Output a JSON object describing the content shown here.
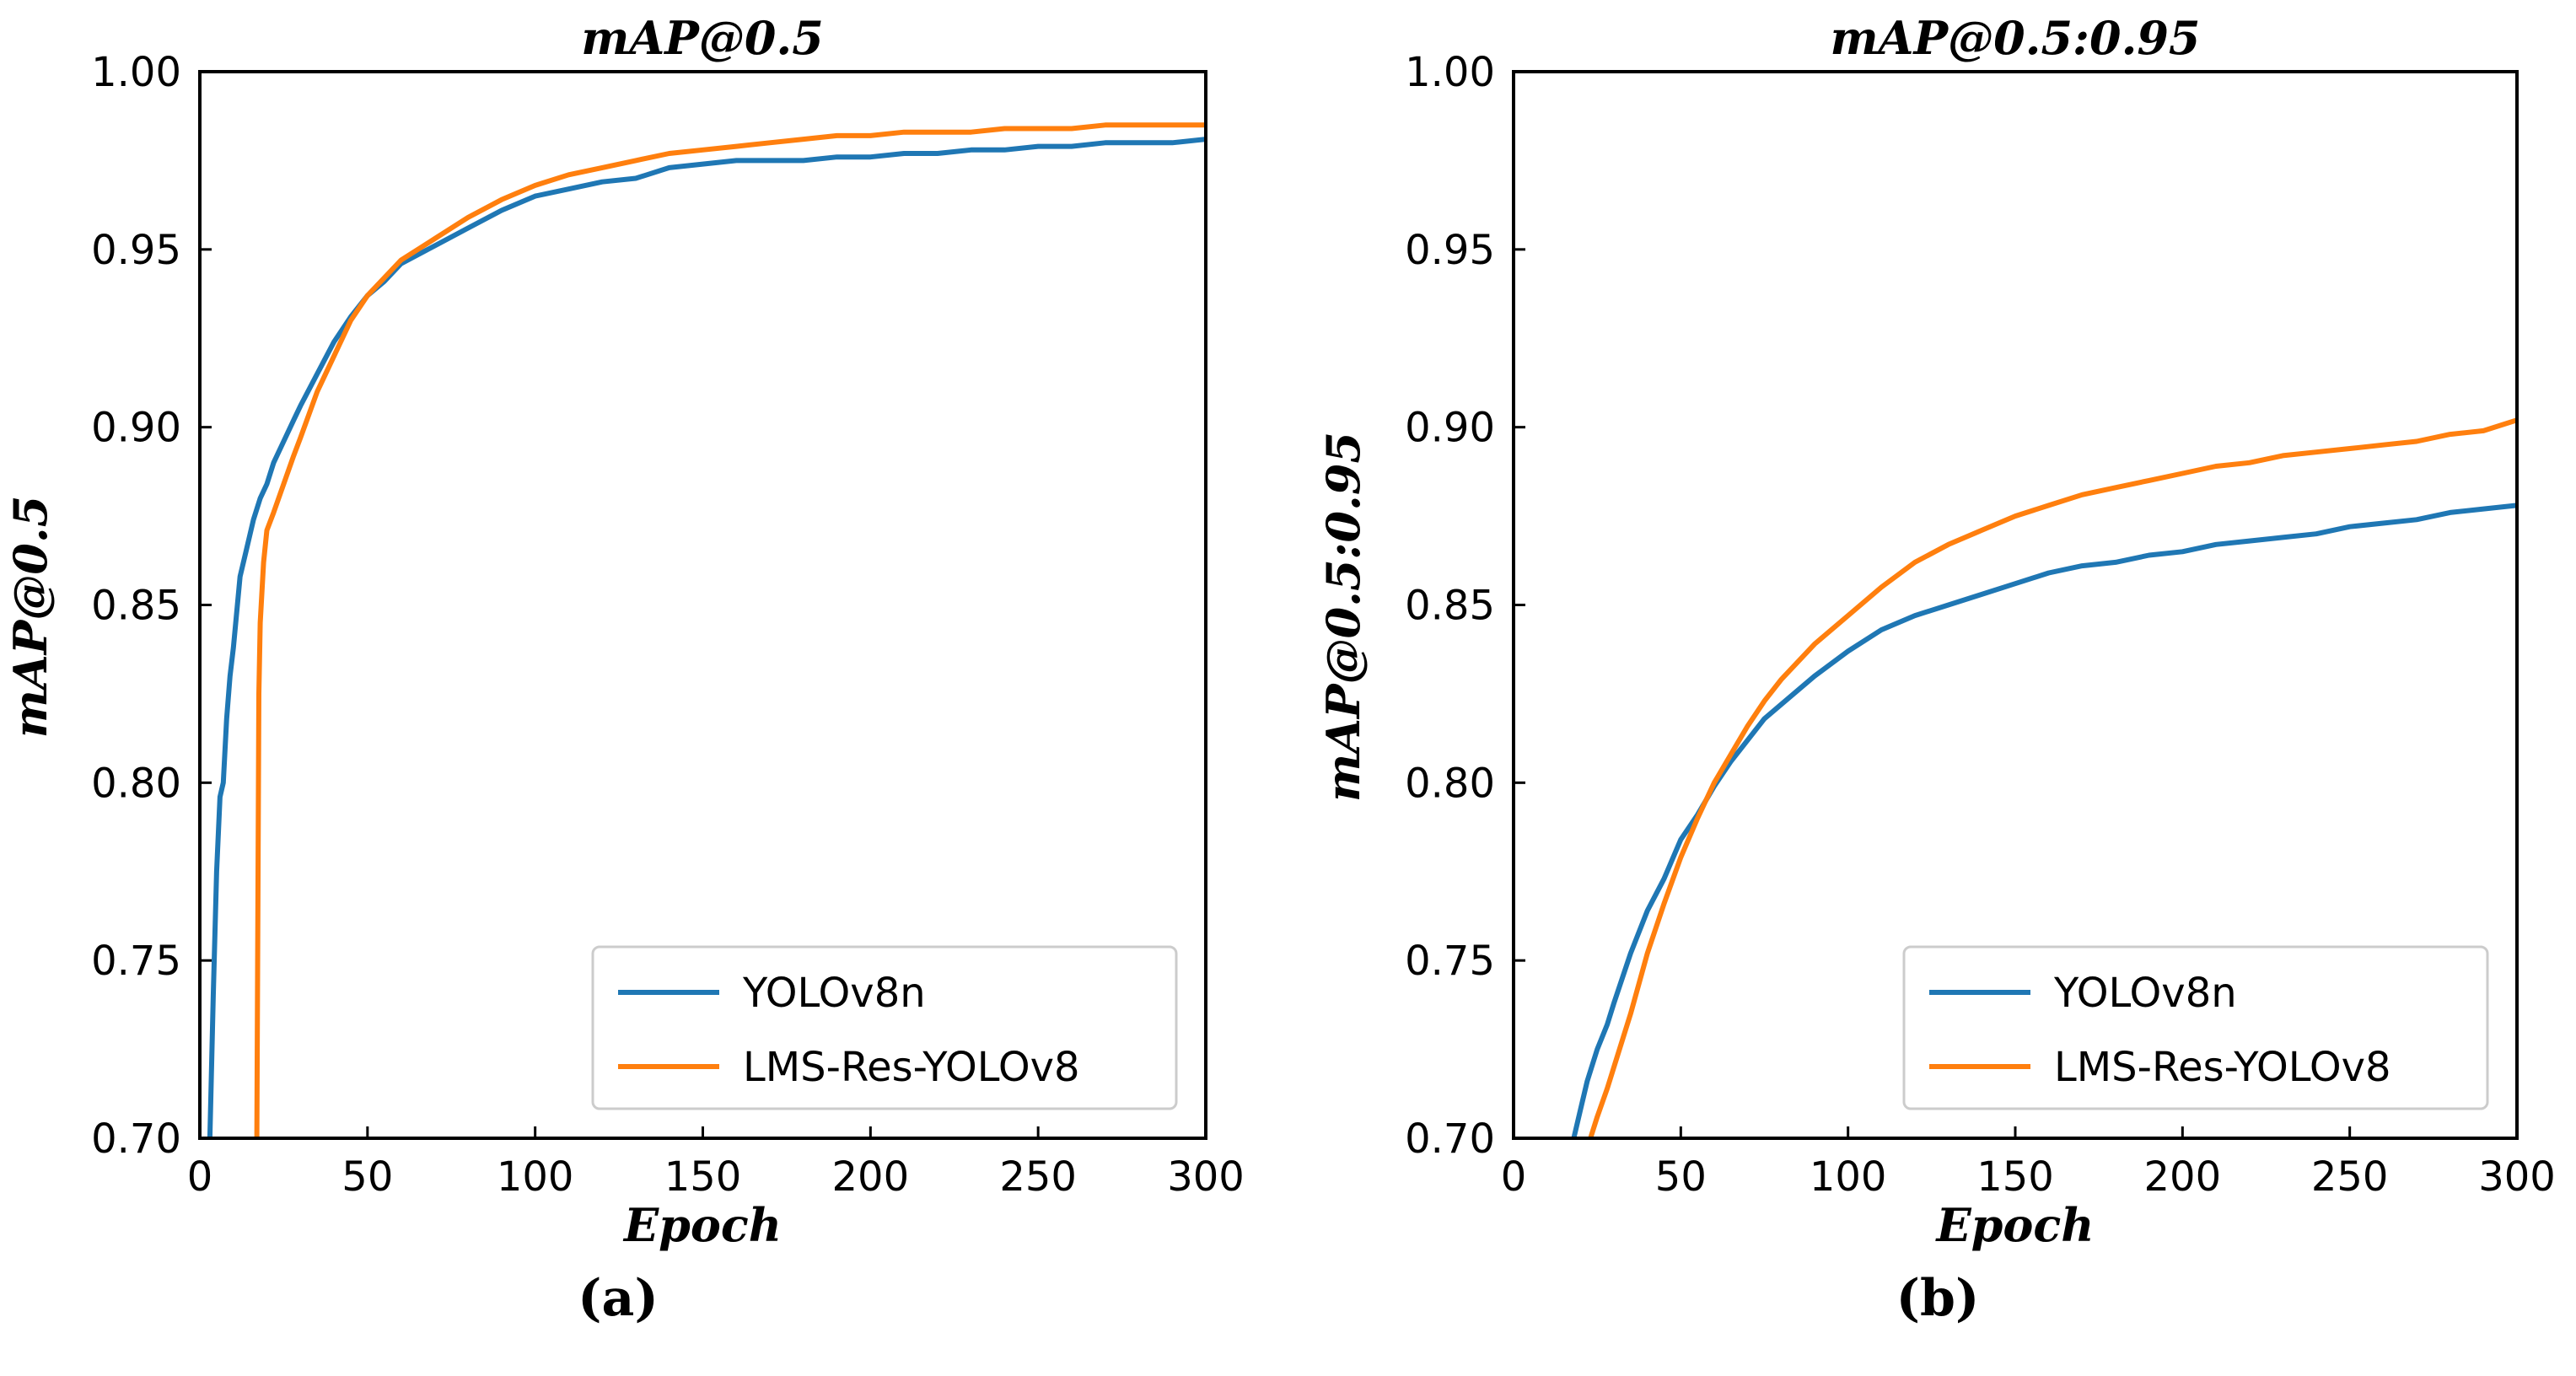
{
  "figure": {
    "captions": [
      "(a)",
      "(b)"
    ]
  },
  "chart_data": [
    {
      "type": "line",
      "title": "mAP@0.5",
      "xlabel": "Epoch",
      "ylabel": "mAP@0.5",
      "xlim": [
        0,
        300
      ],
      "ylim": [
        0.7,
        1.0
      ],
      "xticks": [
        0,
        50,
        100,
        150,
        200,
        250,
        300
      ],
      "yticks": [
        0.7,
        0.75,
        0.8,
        0.85,
        0.9,
        0.95,
        1.0
      ],
      "ytick_labels": [
        "0.70",
        "0.75",
        "0.80",
        "0.85",
        "0.90",
        "0.95",
        "1.00"
      ],
      "legend_position": "lower-right",
      "series": [
        {
          "name": "YOLOv8n",
          "color": "#1f77b4",
          "x": [
            3,
            4,
            5,
            6,
            7,
            8,
            9,
            10,
            12,
            14,
            16,
            18,
            20,
            22,
            25,
            28,
            30,
            35,
            40,
            45,
            50,
            55,
            60,
            70,
            80,
            90,
            100,
            110,
            120,
            130,
            140,
            150,
            160,
            170,
            180,
            190,
            200,
            210,
            220,
            230,
            240,
            250,
            260,
            270,
            280,
            290,
            300
          ],
          "y": [
            0.7,
            0.74,
            0.775,
            0.796,
            0.8,
            0.818,
            0.83,
            0.838,
            0.858,
            0.866,
            0.874,
            0.88,
            0.884,
            0.89,
            0.896,
            0.902,
            0.906,
            0.915,
            0.924,
            0.931,
            0.937,
            0.941,
            0.946,
            0.951,
            0.956,
            0.961,
            0.965,
            0.967,
            0.969,
            0.97,
            0.973,
            0.974,
            0.975,
            0.975,
            0.975,
            0.976,
            0.976,
            0.977,
            0.977,
            0.978,
            0.978,
            0.979,
            0.979,
            0.98,
            0.98,
            0.98,
            0.981
          ]
        },
        {
          "name": "LMS-Res-YOLOv8",
          "color": "#ff7f0e",
          "x": [
            17,
            17.6,
            18,
            19,
            20,
            22,
            25,
            28,
            30,
            35,
            40,
            45,
            50,
            55,
            60,
            70,
            80,
            90,
            100,
            110,
            120,
            130,
            140,
            150,
            160,
            170,
            180,
            190,
            200,
            210,
            220,
            230,
            240,
            250,
            260,
            270,
            280,
            290,
            300
          ],
          "y": [
            0.7,
            0.825,
            0.845,
            0.862,
            0.871,
            0.876,
            0.884,
            0.892,
            0.897,
            0.91,
            0.92,
            0.93,
            0.937,
            0.942,
            0.947,
            0.953,
            0.959,
            0.964,
            0.968,
            0.971,
            0.973,
            0.975,
            0.977,
            0.978,
            0.979,
            0.98,
            0.981,
            0.982,
            0.982,
            0.983,
            0.983,
            0.983,
            0.984,
            0.984,
            0.984,
            0.985,
            0.985,
            0.985,
            0.985
          ]
        }
      ]
    },
    {
      "type": "line",
      "title": "mAP@0.5:0.95",
      "xlabel": "Epoch",
      "ylabel": "mAP@0.5:0.95",
      "xlim": [
        0,
        300
      ],
      "ylim": [
        0.7,
        1.0
      ],
      "xticks": [
        0,
        50,
        100,
        150,
        200,
        250,
        300
      ],
      "yticks": [
        0.7,
        0.75,
        0.8,
        0.85,
        0.9,
        0.95,
        1.0
      ],
      "ytick_labels": [
        "0.70",
        "0.75",
        "0.80",
        "0.85",
        "0.90",
        "0.95",
        "1.00"
      ],
      "legend_position": "lower-right",
      "series": [
        {
          "name": "YOLOv8n",
          "color": "#1f77b4",
          "x": [
            18,
            20,
            22,
            25,
            28,
            30,
            35,
            40,
            45,
            50,
            55,
            60,
            65,
            70,
            75,
            80,
            90,
            100,
            110,
            120,
            130,
            140,
            150,
            160,
            170,
            180,
            190,
            200,
            210,
            220,
            230,
            240,
            250,
            260,
            270,
            280,
            290,
            300
          ],
          "y": [
            0.7,
            0.708,
            0.716,
            0.725,
            0.732,
            0.738,
            0.752,
            0.764,
            0.773,
            0.784,
            0.791,
            0.799,
            0.806,
            0.812,
            0.818,
            0.822,
            0.83,
            0.837,
            0.843,
            0.847,
            0.85,
            0.853,
            0.856,
            0.859,
            0.861,
            0.862,
            0.864,
            0.865,
            0.867,
            0.868,
            0.869,
            0.87,
            0.872,
            0.873,
            0.874,
            0.876,
            0.877,
            0.878
          ]
        },
        {
          "name": "LMS-Res-YOLOv8",
          "color": "#ff7f0e",
          "x": [
            23,
            25,
            28,
            30,
            35,
            40,
            45,
            50,
            55,
            60,
            65,
            70,
            75,
            80,
            90,
            100,
            110,
            120,
            130,
            140,
            150,
            160,
            170,
            180,
            190,
            200,
            210,
            220,
            230,
            240,
            250,
            260,
            270,
            280,
            290,
            300
          ],
          "y": [
            0.7,
            0.706,
            0.714,
            0.72,
            0.735,
            0.752,
            0.766,
            0.779,
            0.79,
            0.8,
            0.808,
            0.816,
            0.823,
            0.829,
            0.839,
            0.847,
            0.855,
            0.862,
            0.867,
            0.871,
            0.875,
            0.878,
            0.881,
            0.883,
            0.885,
            0.887,
            0.889,
            0.89,
            0.892,
            0.893,
            0.894,
            0.895,
            0.896,
            0.898,
            0.899,
            0.902
          ]
        }
      ]
    }
  ]
}
